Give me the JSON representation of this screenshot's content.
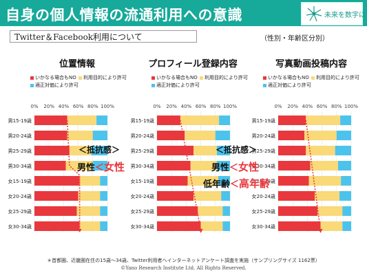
{
  "header": {
    "title": "自身の個人情報の流通利用への意識",
    "logo_text": "未来を数字に"
  },
  "subtitle": "Twitter＆Facebook利用について",
  "breakdown_label": "（性別・年齢区分別）",
  "legend": {
    "no": "いかなる場合もNO",
    "purpose": "利用目的により許可",
    "fair": "適正対価により許可"
  },
  "colors": {
    "no": "#e8383d",
    "purpose": "#f9d978",
    "fair": "#4cc3ec"
  },
  "chart_data": [
    {
      "type": "bar",
      "stacked": true,
      "orientation": "horizontal",
      "title": "位置情報",
      "x_ticks": [
        "0%",
        "20%",
        "40%",
        "60%",
        "80%",
        "100%"
      ],
      "xlim": [
        0,
        100
      ],
      "categories": [
        "男15-19歳",
        "男20-24歳",
        "男25-29歳",
        "男30-34歳",
        "女15-19歳",
        "女20-24歳",
        "女25-29歳",
        "女30-34歳"
      ],
      "series": [
        {
          "name": "いかなる場合もNO",
          "values": [
            45,
            45,
            48,
            43,
            62,
            60,
            58,
            62
          ]
        },
        {
          "name": "利用目的により許可",
          "values": [
            40,
            35,
            30,
            37,
            28,
            30,
            32,
            28
          ]
        },
        {
          "name": "適正対価により許可",
          "values": [
            15,
            20,
            22,
            20,
            10,
            10,
            10,
            10
          ]
        }
      ]
    },
    {
      "type": "bar",
      "stacked": true,
      "orientation": "horizontal",
      "title": "プロフィール登録内容",
      "x_ticks": [
        "0%",
        "20%",
        "40%",
        "60%",
        "80%",
        "100%"
      ],
      "xlim": [
        0,
        100
      ],
      "categories": [
        "男15-19歳",
        "男20-24歳",
        "男25-29歳",
        "男30-34歳",
        "女15-19歳",
        "女20-24歳",
        "女25-29歳",
        "女30-34歳"
      ],
      "series": [
        {
          "name": "いかなる場合もNO",
          "values": [
            32,
            38,
            50,
            46,
            42,
            50,
            56,
            60
          ]
        },
        {
          "name": "利用目的により許可",
          "values": [
            53,
            42,
            32,
            36,
            42,
            38,
            34,
            30
          ]
        },
        {
          "name": "適正対価により許可",
          "values": [
            15,
            20,
            18,
            18,
            16,
            12,
            10,
            10
          ]
        }
      ]
    },
    {
      "type": "bar",
      "stacked": true,
      "orientation": "horizontal",
      "title": "写真動画投稿内容",
      "x_ticks": [
        "0%",
        "20%",
        "40%",
        "60%",
        "80%",
        "100%"
      ],
      "xlim": [
        0,
        100
      ],
      "categories": [
        "男15-19歳",
        "男20-24歳",
        "男25-29歳",
        "男30-34歳",
        "女15-19歳",
        "女20-24歳",
        "女25-29歳",
        "女30-34歳"
      ],
      "series": [
        {
          "name": "いかなる場合もNO",
          "values": [
            38,
            36,
            38,
            44,
            42,
            50,
            54,
            58
          ]
        },
        {
          "name": "利用目的により許可",
          "values": [
            47,
            44,
            40,
            38,
            44,
            34,
            34,
            30
          ]
        },
        {
          "name": "適正対価により許可",
          "values": [
            15,
            20,
            22,
            18,
            14,
            16,
            12,
            12
          ]
        }
      ]
    }
  ],
  "annotations": {
    "resistance": "＜抵抗感＞",
    "gender_left": "男性",
    "gender_lt": "＜",
    "gender_right": "女性",
    "age_left": "低年齢",
    "age_lt": "＜",
    "age_right": "高年齢"
  },
  "footnote": "＊首都圏、近畿圏在住の15歳～34歳、Twitter利用者へインターネットアンケート調査を実施（サンプリングサイズ 1162票）",
  "copyright": "©Yano Research Institute Ltd. All Rights Reserved."
}
